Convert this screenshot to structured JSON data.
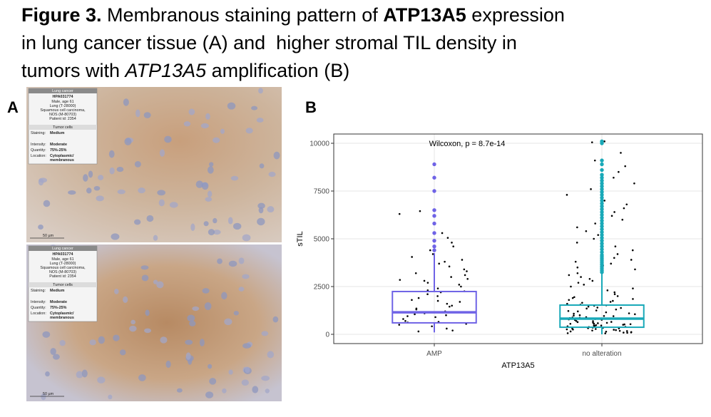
{
  "figure": {
    "title_lines": [
      [
        {
          "text": "Figure 3.",
          "weight": "bold"
        },
        {
          "text": " Membranous staining pattern of ",
          "weight": "normal"
        },
        {
          "text": "ATP13A5",
          "weight": "bold"
        },
        {
          "text": " expression",
          "weight": "normal"
        }
      ],
      [
        {
          "text": "in lung cancer tissue (A) and  higher stromal TIL density in",
          "weight": "normal"
        }
      ],
      [
        {
          "text": "tumors with ",
          "weight": "normal"
        },
        {
          "text": "ATP13A5",
          "style": "italic",
          "weight": "normal"
        },
        {
          "text": " amplification (B)",
          "weight": "normal"
        }
      ]
    ],
    "panel_a_label": "A",
    "panel_b_label": "B",
    "images": [
      {
        "header": "Lung cancer",
        "antibody": "HPA031774",
        "patient": [
          "Male, age 61",
          "Lung (T-28000)",
          "Squamous cell carcinoma,",
          "NOS (M-80703)",
          "Patient id: 2354"
        ],
        "section": "Tumor cells",
        "rows": [
          [
            "Staining:",
            "Medium"
          ],
          [
            "Intensity:",
            "Moderate"
          ],
          [
            "Quantity:",
            "75%-25%"
          ],
          [
            "Location:",
            "Cytoplasmic/",
            "membranous"
          ]
        ],
        "scale": "50 µm"
      },
      {
        "header": "Lung cancer",
        "antibody": "HPA031774",
        "patient": [
          "Male, age 61",
          "Lung (T-28000)",
          "Squamous cell carcinoma,",
          "NOS (M-80703)",
          "Patient id: 2354"
        ],
        "section": "Tumor cells",
        "rows": [
          [
            "Staining:",
            "Medium"
          ],
          [
            "Intensity:",
            "Moderate"
          ],
          [
            "Quantity:",
            "75%-25%"
          ],
          [
            "Location:",
            "Cytoplasmic/",
            "membranous"
          ]
        ],
        "scale": "50 µm"
      }
    ]
  },
  "chart_data": {
    "type": "boxplot",
    "y_label": "sTIL",
    "x_label": "ATP13A5",
    "annotation": "Wilcoxon, p = 8.7e-14",
    "categories": [
      "AMP",
      "no alteration"
    ],
    "ylim": [
      -485,
      10485
    ],
    "yticks": [
      0,
      2500,
      5000,
      7500,
      10000
    ],
    "grid": true,
    "point_color": "#000000",
    "boxes": [
      {
        "color": "#6f63e6",
        "whisker_low": 100,
        "q1": 600,
        "median": 1150,
        "q3": 2240,
        "whisker_high": 4250,
        "outliers": [
          4400,
          4600,
          4900,
          5300,
          5800,
          6200,
          6500,
          7500,
          8200,
          8900
        ],
        "points": [
          150,
          300,
          420,
          500,
          620,
          700,
          800,
          900,
          950,
          1050,
          1100,
          1200,
          1300,
          1350,
          1450,
          1500,
          1600,
          1700,
          1800,
          1900,
          2000,
          2100,
          2200,
          2300,
          2400,
          2500,
          2600,
          2700,
          2800,
          2900,
          3000,
          3100,
          3200,
          3300,
          3400,
          3550,
          3700,
          3800,
          3900,
          4050,
          4200,
          4400,
          4600,
          4800,
          5050,
          5300,
          6300,
          6450,
          200,
          650,
          1150,
          1750,
          2250,
          2850,
          550,
          1000
        ]
      },
      {
        "color": "#19a9b8",
        "whisker_low": 0,
        "q1": 370,
        "median": 820,
        "q3": 1530,
        "whisker_high": 3200,
        "outliers": [
          3250,
          3350,
          3450,
          3550,
          3650,
          3750,
          3850,
          3950,
          4050,
          4150,
          4300,
          4450,
          4600,
          4750,
          4900,
          5050,
          5200,
          5350,
          5500,
          5650,
          5800,
          5950,
          6100,
          6250,
          6400,
          6550,
          6700,
          6850,
          7000,
          7150,
          7300,
          7450,
          7600,
          7750,
          7900,
          8050,
          8200,
          8350,
          8600,
          8900,
          9100,
          10000,
          10100
        ],
        "points": [
          50,
          80,
          100,
          120,
          150,
          180,
          200,
          220,
          250,
          280,
          300,
          320,
          350,
          380,
          400,
          420,
          450,
          480,
          500,
          520,
          550,
          580,
          600,
          650,
          700,
          750,
          800,
          850,
          900,
          950,
          1000,
          1050,
          1100,
          1150,
          1200,
          1250,
          1300,
          1350,
          1400,
          1450,
          1500,
          1550,
          1600,
          1650,
          1700,
          1750,
          1800,
          1850,
          1900,
          1950,
          2000,
          2100,
          2200,
          2300,
          2400,
          2500,
          2600,
          2700,
          2800,
          2900,
          3000,
          3100,
          3200,
          3300,
          3400,
          3500,
          3600,
          3700,
          3800,
          3900,
          4000,
          4200,
          4400,
          4600,
          4800,
          5000,
          5200,
          5400,
          5600,
          5800,
          6000,
          6200,
          6400,
          6600,
          6800,
          7000,
          7300,
          7600,
          7900,
          8200,
          8500,
          8800,
          9100,
          9500,
          10050,
          10100,
          60,
          140,
          260,
          340,
          460,
          560,
          640,
          760,
          860,
          960,
          1080,
          1220,
          1380,
          1520,
          90,
          170,
          240,
          310,
          390,
          470,
          530,
          610,
          690,
          780,
          880,
          980
        ]
      }
    ]
  }
}
